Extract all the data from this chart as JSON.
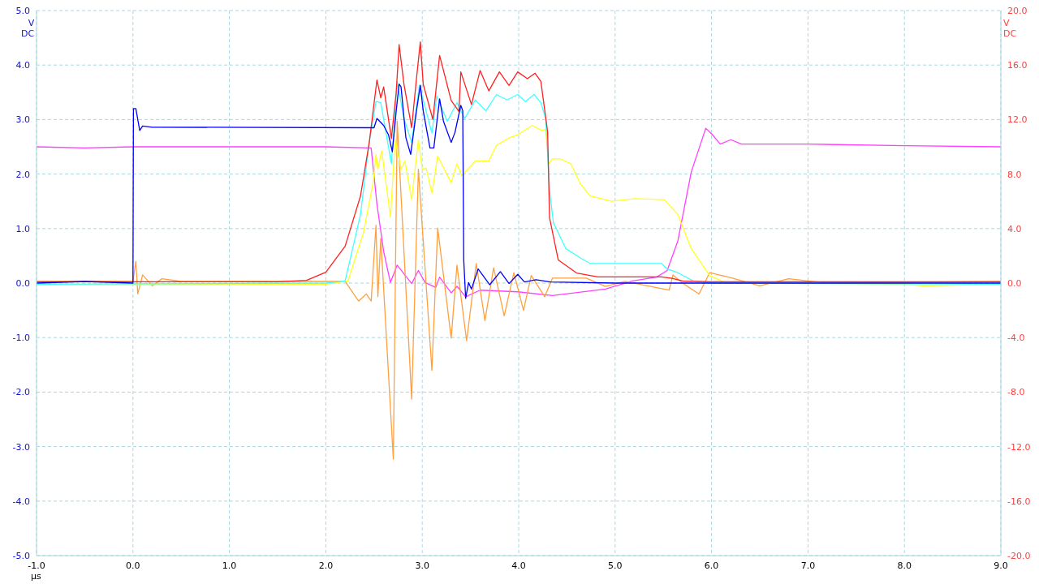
{
  "chart_data": {
    "type": "line",
    "xlabel": "µs",
    "ylabel": "V DC",
    "y2label": "V DC",
    "xlim": [
      -1,
      9
    ],
    "ylim": [
      -5,
      5
    ],
    "y2lim": [
      -20,
      20
    ],
    "xticks": [
      {
        "value": -1,
        "label": "-1.0"
      },
      {
        "value": 0,
        "label": "0.0"
      },
      {
        "value": 1,
        "label": "1.0"
      },
      {
        "value": 2,
        "label": "2.0"
      },
      {
        "value": 3,
        "label": "3.0"
      },
      {
        "value": 4,
        "label": "4.0"
      },
      {
        "value": 5,
        "label": "5.0"
      },
      {
        "value": 6,
        "label": "6.0"
      },
      {
        "value": 7,
        "label": "7.0"
      },
      {
        "value": 8,
        "label": "8.0"
      },
      {
        "value": 9,
        "label": "9.0"
      }
    ],
    "yticks": [
      {
        "value": -5,
        "label": "-5.0"
      },
      {
        "value": -4,
        "label": "-4.0"
      },
      {
        "value": -3,
        "label": "-3.0"
      },
      {
        "value": -2,
        "label": "-2.0"
      },
      {
        "value": -1,
        "label": "-1.0"
      },
      {
        "value": 0,
        "label": "0.0"
      },
      {
        "value": 1,
        "label": "1.0"
      },
      {
        "value": 2,
        "label": "2.0"
      },
      {
        "value": 3,
        "label": "3.0"
      },
      {
        "value": 4,
        "label": "4.0"
      },
      {
        "value": 5,
        "label": "5.0"
      }
    ],
    "y2ticks": [
      {
        "value": -20,
        "label": "-20.0"
      },
      {
        "value": -16,
        "label": "-16.0"
      },
      {
        "value": -12,
        "label": "-12.0"
      },
      {
        "value": -8,
        "label": "-8.0"
      },
      {
        "value": -4,
        "label": "-4.0"
      },
      {
        "value": 0,
        "label": "0.0"
      },
      {
        "value": 4,
        "label": "4.0"
      },
      {
        "value": 8,
        "label": "8.0"
      },
      {
        "value": 12,
        "label": "12.0"
      },
      {
        "value": 16,
        "label": "16.0"
      },
      {
        "value": 20,
        "label": "20.0"
      }
    ],
    "grid": true,
    "marker": "none",
    "line_style": "solid",
    "series": [
      {
        "color": "#ff40ff",
        "x": [
          -1,
          -0.5,
          0,
          1,
          2,
          2.47,
          2.53,
          2.6,
          2.67,
          2.74,
          2.89,
          2.96,
          3.03,
          3.14,
          3.18,
          3.3,
          3.36,
          3.45,
          3.6,
          3.99,
          4.35,
          4.9,
          5.18,
          5.43,
          5.54,
          5.65,
          5.79,
          5.94,
          6.01,
          6.09,
          6.2,
          6.31,
          7,
          8,
          9
        ],
        "values": [
          2.5,
          2.48,
          2.5,
          2.5,
          2.5,
          2.48,
          1.45,
          0.58,
          0.01,
          0.33,
          -0.01,
          0.23,
          0.01,
          -0.08,
          0.11,
          -0.18,
          -0.06,
          -0.25,
          -0.13,
          -0.16,
          -0.23,
          -0.11,
          0.04,
          0.11,
          0.23,
          0.77,
          2.04,
          2.84,
          2.72,
          2.55,
          2.63,
          2.55,
          2.55,
          2.52,
          2.5
        ]
      },
      {
        "color": "#ffa040",
        "x": [
          -1,
          0,
          0.03,
          0.05,
          0.1,
          0.2,
          0.3,
          0.5,
          2.2,
          2.34,
          2.42,
          2.47,
          2.52,
          2.54,
          2.57,
          2.7,
          2.74,
          2.89,
          2.96,
          3.1,
          3.16,
          3.3,
          3.36,
          3.46,
          3.56,
          3.65,
          3.74,
          3.85,
          3.95,
          4.05,
          4.13,
          4.27,
          4.35,
          4.7,
          4.9,
          5.1,
          5.56,
          5.6,
          5.7,
          5.87,
          5.98,
          6.2,
          6.5,
          6.8,
          7.2,
          9
        ],
        "values": [
          0.03,
          0.03,
          0.4,
          -0.2,
          0.15,
          -0.05,
          0.08,
          0.03,
          0.03,
          -0.33,
          -0.2,
          -0.33,
          1.06,
          -0.25,
          0.82,
          -3.23,
          2.97,
          -2.13,
          2.09,
          -1.6,
          1.01,
          -1.01,
          0.33,
          -1.06,
          0.36,
          -0.69,
          0.28,
          -0.6,
          0.19,
          -0.5,
          0.14,
          -0.25,
          0.09,
          0.09,
          -0.06,
          0.03,
          -0.13,
          0.15,
          0,
          -0.2,
          0.19,
          0.1,
          -0.05,
          0.08,
          0,
          0.03
        ]
      },
      {
        "color": "#ffff20",
        "x": [
          -1,
          2,
          2.23,
          2.39,
          2.49,
          2.52,
          2.54,
          2.58,
          2.67,
          2.72,
          2.78,
          2.82,
          2.89,
          2.96,
          3,
          3.04,
          3.1,
          3.16,
          3.3,
          3.36,
          3.41,
          3.55,
          3.69,
          3.77,
          3.91,
          3.99,
          4.14,
          4.24,
          4.28,
          4.31,
          4.35,
          4.43,
          4.54,
          4.64,
          4.74,
          4.96,
          5.21,
          5.51,
          5.65,
          5.79,
          5.98,
          6.14,
          8,
          8.2,
          9
        ],
        "values": [
          -0.03,
          -0.02,
          0.04,
          0.92,
          1.84,
          2.36,
          2.09,
          2.43,
          1.21,
          2.63,
          2.09,
          2.24,
          1.53,
          2.63,
          2.09,
          2.11,
          1.65,
          2.33,
          1.84,
          2.19,
          1.97,
          2.24,
          2.24,
          2.53,
          2.67,
          2.72,
          2.89,
          2.8,
          2.82,
          2.19,
          2.28,
          2.28,
          2.19,
          1.82,
          1.6,
          1.5,
          1.55,
          1.53,
          1.26,
          0.63,
          0.14,
          0.01,
          -0.02,
          -0.05,
          -0.02
        ]
      },
      {
        "color": "#40ffff",
        "x": [
          -1,
          2,
          2.2,
          2.36,
          2.45,
          2.52,
          2.57,
          2.68,
          2.74,
          2.81,
          2.89,
          2.97,
          3.1,
          3.15,
          3.26,
          3.36,
          3.44,
          3.55,
          3.66,
          3.77,
          3.88,
          3.99,
          4.07,
          4.16,
          4.23,
          4.28,
          4.32,
          4.36,
          4.49,
          4.65,
          4.74,
          5.48,
          5.54,
          5.65,
          5.81,
          6,
          9
        ],
        "values": [
          -0.02,
          0,
          0.04,
          1.26,
          2.58,
          3.33,
          3.31,
          2.19,
          3.7,
          3.02,
          2.58,
          3.63,
          2.75,
          3.43,
          2.97,
          3.31,
          3.02,
          3.36,
          3.16,
          3.46,
          3.36,
          3.46,
          3.33,
          3.46,
          3.31,
          3.02,
          1.7,
          1.11,
          0.63,
          0.45,
          0.36,
          0.36,
          0.26,
          0.19,
          0.04,
          0,
          -0.02
        ]
      },
      {
        "color": "#ff2020",
        "axis": "y2",
        "x": [
          -1,
          1.5,
          1.8,
          2,
          2.2,
          2.36,
          2.45,
          2.53,
          2.57,
          2.6,
          2.68,
          2.73,
          2.76,
          2.81,
          2.89,
          2.94,
          2.98,
          3.01,
          3.11,
          3.18,
          3.3,
          3.38,
          3.4,
          3.51,
          3.6,
          3.69,
          3.8,
          3.9,
          3.99,
          4.09,
          4.17,
          4.23,
          4.3,
          4.32,
          4.41,
          4.6,
          4.82,
          5.48,
          5.59,
          5.7,
          6,
          9
        ],
        "values": [
          0.1,
          0.1,
          0.2,
          0.8,
          2.7,
          6.4,
          10.3,
          14.9,
          13.6,
          14.4,
          10.6,
          14,
          17.5,
          14.6,
          11.4,
          15,
          17.7,
          14.6,
          12,
          16.7,
          13.4,
          12.6,
          15.5,
          13.1,
          15.6,
          14.1,
          15.5,
          14.5,
          15.5,
          15,
          15.4,
          14.8,
          11.1,
          4.8,
          1.7,
          0.74,
          0.45,
          0.45,
          0.35,
          0.15,
          0.1,
          0.1
        ]
      },
      {
        "color": "#0000ff",
        "x": [
          -1,
          -0.5,
          0,
          0.005,
          0.03,
          0.07,
          0.1,
          0.2,
          2.5,
          2.53,
          2.6,
          2.65,
          2.69,
          2.73,
          2.76,
          2.78,
          2.83,
          2.88,
          2.94,
          2.98,
          3.01,
          3.08,
          3.12,
          3.18,
          3.22,
          3.3,
          3.34,
          3.4,
          3.42,
          3.43,
          3.45,
          3.48,
          3.51,
          3.58,
          3.7,
          3.81,
          3.9,
          3.99,
          4.06,
          4.18,
          4.33,
          5,
          9
        ],
        "values": [
          0,
          0.03,
          0,
          3.2,
          3.2,
          2.8,
          2.88,
          2.86,
          2.85,
          3.02,
          2.89,
          2.72,
          2.41,
          3.16,
          3.65,
          3.6,
          2.67,
          2.36,
          3.16,
          3.63,
          3.16,
          2.48,
          2.48,
          3.38,
          2.97,
          2.58,
          2.77,
          3.26,
          3.16,
          0.43,
          -0.28,
          0.01,
          -0.11,
          0.26,
          -0.03,
          0.21,
          -0.01,
          0.16,
          0.02,
          0.06,
          0.02,
          0,
          0
        ]
      }
    ]
  }
}
